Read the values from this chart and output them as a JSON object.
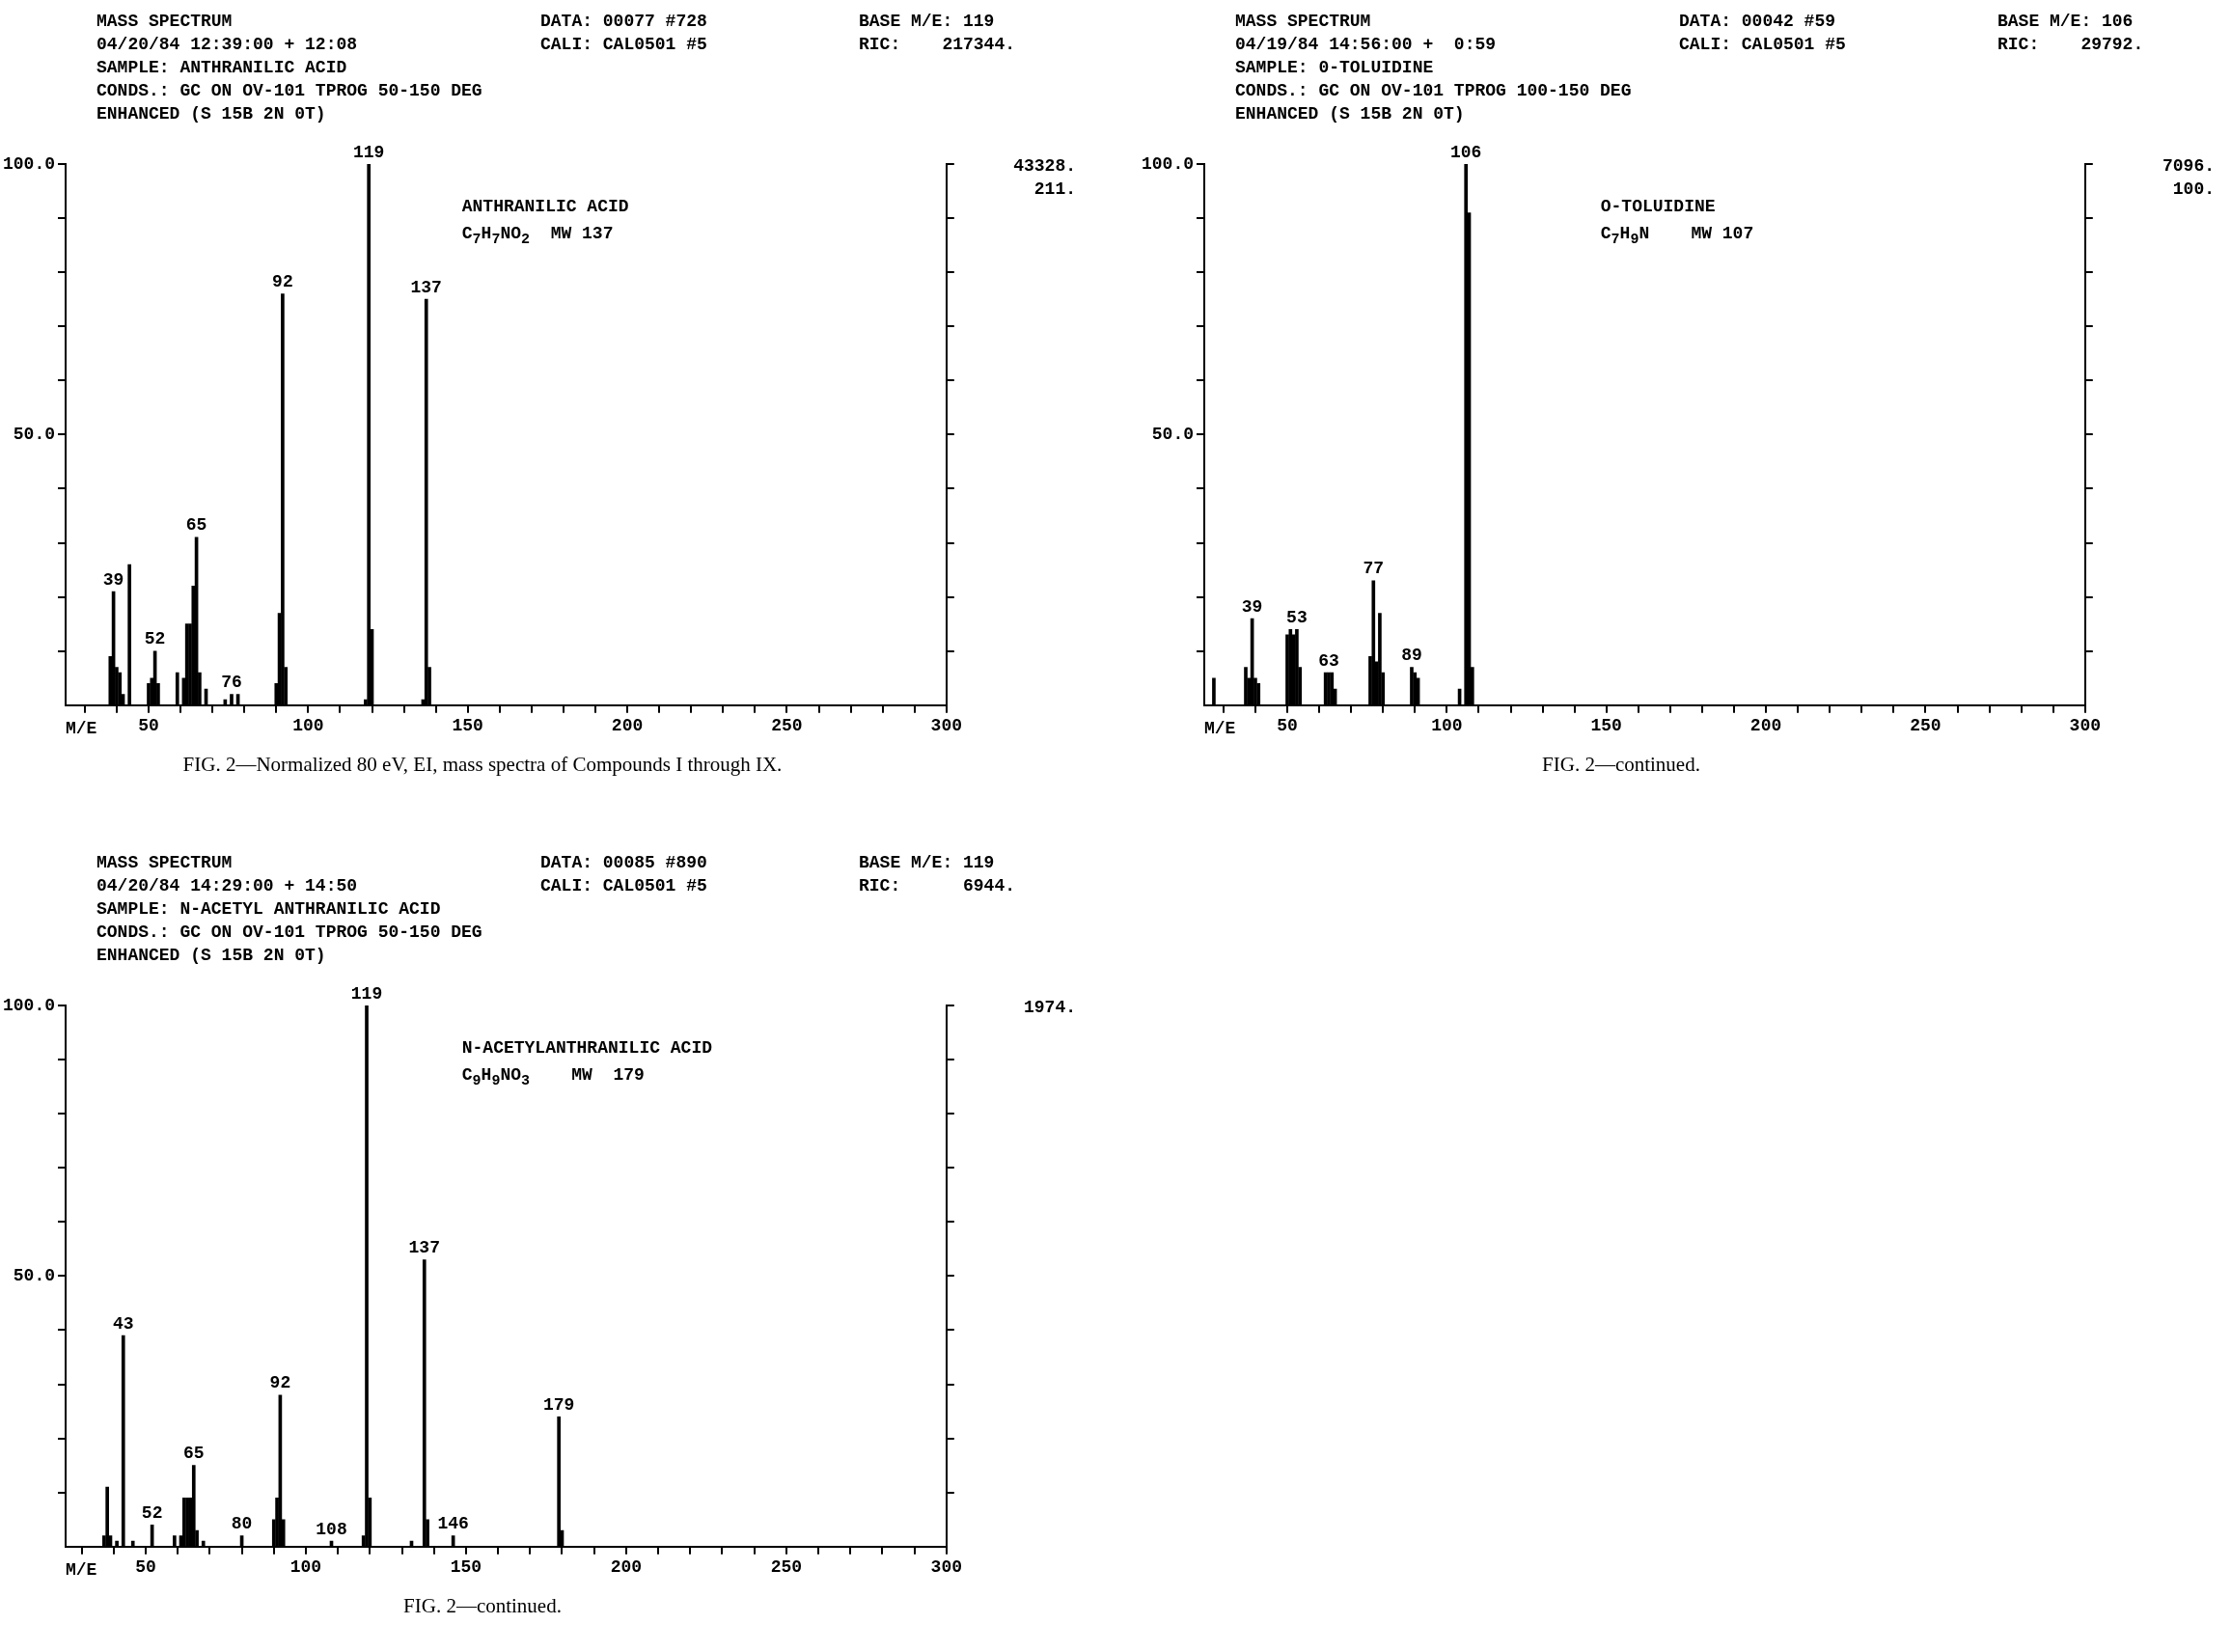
{
  "chart_data": [
    {
      "type": "bar",
      "title": "MASS SPECTRUM",
      "xlabel": "M/E",
      "color": "#000000",
      "annotations": [
        "04/20/84 12:39:00 + 12:08",
        "SAMPLE: ANTHRANILIC ACID",
        "CONDS.: GC ON OV-101 TPROG 50-150 DEG",
        "ENHANCED (S 15B 2N 0T)",
        "DATA: 00077 #728",
        "CALI: CAL0501 #5",
        "BASE M/E: 119",
        "RIC:    217344.",
        "43328.",
        "211.",
        "ANTHRANILIC ACID",
        "C$_{7}$H$_{7}$NO$_{2}$  MW 137",
        "FIG. 2—Normalized 80 eV, EI, mass spectra of Compounds I through IX.",
        {
          "text": "39",
          "x": 39,
          "y": 21
        },
        {
          "text": "52",
          "x": 52,
          "y": 10
        },
        {
          "text": "65",
          "x": 65,
          "y": 31
        },
        {
          "text": "76",
          "x": 76,
          "y": 2
        },
        {
          "text": "92",
          "x": 92,
          "y": 76
        },
        {
          "text": "119",
          "x": 119,
          "y": 100
        },
        {
          "text": "137",
          "x": 137,
          "y": 75
        }
      ],
      "x": [
        38,
        39,
        40,
        41,
        42,
        44,
        50,
        51,
        52,
        53,
        59,
        61,
        62,
        63,
        64,
        65,
        66,
        68,
        74,
        76,
        78,
        90,
        91,
        92,
        93,
        118,
        119,
        120,
        136,
        137,
        138
      ],
      "values": [
        9,
        21,
        7,
        6,
        2,
        26,
        4,
        5,
        10,
        4,
        6,
        5,
        15,
        15,
        22,
        31,
        6,
        3,
        1,
        2,
        2,
        4,
        17,
        76,
        7,
        1,
        100,
        14,
        1,
        75,
        7
      ],
      "xlim": [
        24,
        300
      ],
      "xticks": [
        {
          "value": 30,
          "label": null
        },
        {
          "value": 40,
          "label": null
        },
        50,
        {
          "value": 60,
          "label": null
        },
        {
          "value": 70,
          "label": null
        },
        {
          "value": 80,
          "label": null
        },
        {
          "value": 90,
          "label": null
        },
        100,
        {
          "value": 110,
          "label": null
        },
        {
          "value": 120,
          "label": null
        },
        {
          "value": 130,
          "label": null
        },
        {
          "value": 140,
          "label": null
        },
        150,
        {
          "value": 160,
          "label": null
        },
        {
          "value": 170,
          "label": null
        },
        {
          "value": 180,
          "label": null
        },
        {
          "value": 190,
          "label": null
        },
        200,
        {
          "value": 210,
          "label": null
        },
        {
          "value": 220,
          "label": null
        },
        {
          "value": 230,
          "label": null
        },
        {
          "value": 240,
          "label": null
        },
        250,
        {
          "value": 260,
          "label": null
        },
        {
          "value": 270,
          "label": null
        },
        {
          "value": 280,
          "label": null
        },
        {
          "value": 290,
          "label": null
        },
        300
      ],
      "ylim": [
        0,
        100
      ],
      "yticks": [
        {
          "value": 10,
          "label": null
        },
        {
          "value": 20,
          "label": null
        },
        {
          "value": 30,
          "label": null
        },
        {
          "value": 40,
          "label": null
        },
        {
          "value": 50,
          "label": "50.0"
        },
        {
          "value": 60,
          "label": null
        },
        {
          "value": 70,
          "label": null
        },
        {
          "value": 80,
          "label": null
        },
        {
          "value": 90,
          "label": null
        },
        {
          "value": 100,
          "label": "100.0"
        }
      ]
    },
    {
      "type": "bar",
      "title": "MASS SPECTRUM",
      "xlabel": "M/E",
      "color": "#000000",
      "annotations": [
        "04/19/84 14:56:00 +  0:59",
        "SAMPLE: 0-TOLUIDINE",
        "CONDS.: GC ON OV-101 TPROG 100-150 DEG",
        "ENHANCED (S 15B 2N 0T)",
        "DATA: 00042 #59",
        "CALI: CAL0501 #5",
        "BASE M/E: 106",
        "RIC:    29792.",
        "7096.",
        "100.",
        "O-TOLUIDINE",
        "C$_{7}$H$_{9}$N    MW 107",
        "FIG. 2—continued.",
        {
          "text": "39",
          "x": 39,
          "y": 16
        },
        {
          "text": "53",
          "x": 53,
          "y": 14
        },
        {
          "text": "63",
          "x": 63,
          "y": 6
        },
        {
          "text": "77",
          "x": 77,
          "y": 23
        },
        {
          "text": "89",
          "x": 89,
          "y": 7
        },
        {
          "text": "106",
          "x": 106,
          "y": 100
        }
      ],
      "x": [
        27,
        37,
        38,
        39,
        40,
        41,
        50,
        51,
        52,
        53,
        54,
        62,
        63,
        64,
        65,
        76,
        77,
        78,
        79,
        80,
        89,
        90,
        91,
        104,
        106,
        107,
        108
      ],
      "values": [
        5,
        7,
        5,
        16,
        5,
        4,
        13,
        14,
        13,
        14,
        7,
        6,
        6,
        6,
        3,
        9,
        23,
        8,
        17,
        6,
        7,
        6,
        5,
        3,
        100,
        91,
        7
      ],
      "xlim": [
        24,
        300
      ],
      "xticks": [
        {
          "value": 30,
          "label": null
        },
        {
          "value": 40,
          "label": null
        },
        50,
        {
          "value": 60,
          "label": null
        },
        {
          "value": 70,
          "label": null
        },
        {
          "value": 80,
          "label": null
        },
        {
          "value": 90,
          "label": null
        },
        100,
        {
          "value": 110,
          "label": null
        },
        {
          "value": 120,
          "label": null
        },
        {
          "value": 130,
          "label": null
        },
        {
          "value": 140,
          "label": null
        },
        150,
        {
          "value": 160,
          "label": null
        },
        {
          "value": 170,
          "label": null
        },
        {
          "value": 180,
          "label": null
        },
        {
          "value": 190,
          "label": null
        },
        200,
        {
          "value": 210,
          "label": null
        },
        {
          "value": 220,
          "label": null
        },
        {
          "value": 230,
          "label": null
        },
        {
          "value": 240,
          "label": null
        },
        250,
        {
          "value": 260,
          "label": null
        },
        {
          "value": 270,
          "label": null
        },
        {
          "value": 280,
          "label": null
        },
        {
          "value": 290,
          "label": null
        },
        300
      ],
      "ylim": [
        0,
        100
      ],
      "yticks": [
        {
          "value": 10,
          "label": null
        },
        {
          "value": 20,
          "label": null
        },
        {
          "value": 30,
          "label": null
        },
        {
          "value": 40,
          "label": null
        },
        {
          "value": 50,
          "label": "50.0"
        },
        {
          "value": 60,
          "label": null
        },
        {
          "value": 70,
          "label": null
        },
        {
          "value": 80,
          "label": null
        },
        {
          "value": 90,
          "label": null
        },
        {
          "value": 100,
          "label": "100.0"
        }
      ]
    },
    {
      "type": "bar",
      "title": "MASS SPECTRUM",
      "xlabel": "M/E",
      "color": "#000000",
      "annotations": [
        "04/20/84 14:29:00 + 14:50",
        "SAMPLE: N-ACETYL ANTHRANILIC ACID",
        "CONDS.: GC ON OV-101 TPROG 50-150 DEG",
        "ENHANCED (S 15B 2N 0T)",
        "DATA: 00085 #890",
        "CALI: CAL0501 #5",
        "BASE M/E: 119",
        "RIC:      6944.",
        "1974.",
        "N-ACETYLANTHRANILIC ACID",
        "C$_{9}$H$_{9}$NO$_{3}$    MW  179",
        "FIG. 2—continued.",
        {
          "text": "43",
          "x": 43,
          "y": 39
        },
        {
          "text": "52",
          "x": 52,
          "y": 4
        },
        {
          "text": "65",
          "x": 65,
          "y": 15
        },
        {
          "text": "80",
          "x": 80,
          "y": 2
        },
        {
          "text": "92",
          "x": 92,
          "y": 28
        },
        {
          "text": "108",
          "x": 108,
          "y": 1
        },
        {
          "text": "119",
          "x": 119,
          "y": 100
        },
        {
          "text": "137",
          "x": 137,
          "y": 53
        },
        {
          "text": "146",
          "x": 146,
          "y": 2
        },
        {
          "text": "179",
          "x": 179,
          "y": 24
        }
      ],
      "x": [
        37,
        38,
        39,
        41,
        43,
        46,
        52,
        59,
        61,
        62,
        63,
        64,
        65,
        66,
        68,
        80,
        90,
        91,
        92,
        93,
        108,
        118,
        119,
        120,
        133,
        137,
        138,
        146,
        179,
        180
      ],
      "values": [
        2,
        11,
        2,
        1,
        39,
        1,
        4,
        2,
        2,
        9,
        9,
        9,
        15,
        3,
        1,
        2,
        5,
        9,
        28,
        5,
        1,
        2,
        100,
        9,
        1,
        53,
        5,
        2,
        24,
        3
      ],
      "xlim": [
        25,
        300
      ],
      "xticks": [
        {
          "value": 30,
          "label": null
        },
        {
          "value": 40,
          "label": null
        },
        50,
        {
          "value": 60,
          "label": null
        },
        {
          "value": 70,
          "label": null
        },
        {
          "value": 80,
          "label": null
        },
        {
          "value": 90,
          "label": null
        },
        100,
        {
          "value": 110,
          "label": null
        },
        {
          "value": 120,
          "label": null
        },
        {
          "value": 130,
          "label": null
        },
        {
          "value": 140,
          "label": null
        },
        150,
        {
          "value": 160,
          "label": null
        },
        {
          "value": 170,
          "label": null
        },
        {
          "value": 180,
          "label": null
        },
        {
          "value": 190,
          "label": null
        },
        200,
        {
          "value": 210,
          "label": null
        },
        {
          "value": 220,
          "label": null
        },
        {
          "value": 230,
          "label": null
        },
        {
          "value": 240,
          "label": null
        },
        250,
        {
          "value": 260,
          "label": null
        },
        {
          "value": 270,
          "label": null
        },
        {
          "value": 280,
          "label": null
        },
        {
          "value": 290,
          "label": null
        },
        300
      ],
      "ylim": [
        0,
        100
      ],
      "yticks": [
        {
          "value": 10,
          "label": null
        },
        {
          "value": 20,
          "label": null
        },
        {
          "value": 30,
          "label": null
        },
        {
          "value": 40,
          "label": null
        },
        {
          "value": 50,
          "label": "50.0"
        },
        {
          "value": 60,
          "label": null
        },
        {
          "value": 70,
          "label": null
        },
        {
          "value": 80,
          "label": null
        },
        {
          "value": 90,
          "label": null
        },
        {
          "value": 100,
          "label": "100.0"
        }
      ]
    }
  ]
}
